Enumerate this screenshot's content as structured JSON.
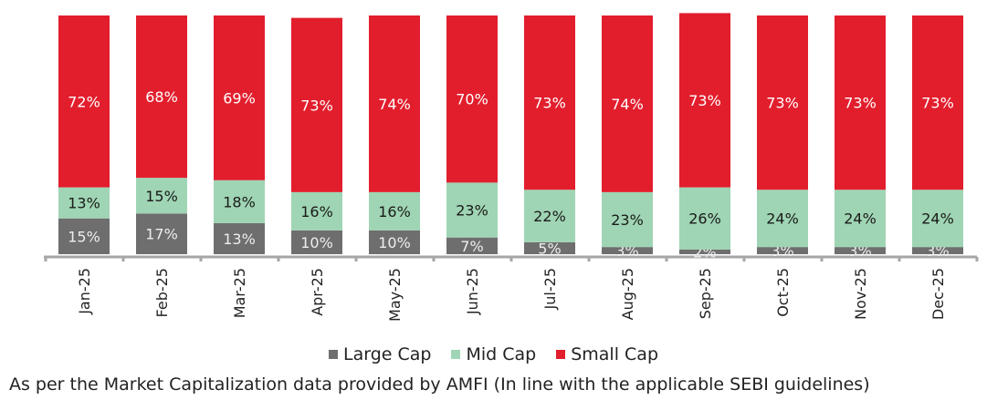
{
  "chart_data": {
    "type": "bar",
    "stacked": true,
    "categories": [
      "Jan-25",
      "Feb-25",
      "Mar-25",
      "Apr-25",
      "May-25",
      "Jun-25",
      "Jul-25",
      "Aug-25",
      "Sep-25",
      "Oct-25",
      "Nov-25",
      "Dec-25"
    ],
    "series": [
      {
        "name": "Large Cap",
        "color": "#6e6e6e",
        "label_color": "#eeeeee",
        "values": [
          15,
          17,
          13,
          10,
          10,
          7,
          5,
          3,
          2,
          3,
          3,
          3
        ]
      },
      {
        "name": "Mid Cap",
        "color": "#9fd5b4",
        "label_color": "#1a1a1a",
        "values": [
          13,
          15,
          18,
          16,
          16,
          23,
          22,
          23,
          26,
          24,
          24,
          24
        ]
      },
      {
        "name": "Small Cap",
        "color": "#e21e2d",
        "label_color": "#ffffff",
        "values": [
          72,
          68,
          69,
          73,
          74,
          70,
          73,
          74,
          73,
          73,
          73,
          73
        ]
      }
    ],
    "value_suffix": "%",
    "ylim": [
      0,
      100
    ],
    "grid": false,
    "legend_position": "bottom"
  },
  "footnote": "As per the Market Capitalization data provided by AMFI (In line with the applicable SEBI guidelines)"
}
